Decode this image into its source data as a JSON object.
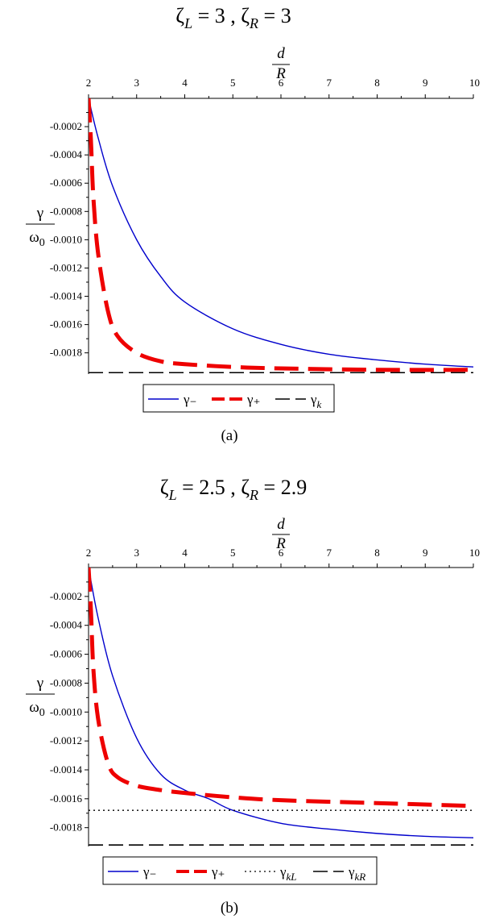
{
  "chart_data": [
    {
      "type": "line",
      "panel_caption": "(a)",
      "title": {
        "zetaL": "3",
        "zetaR": "3"
      },
      "xlabel": {
        "num": "d",
        "den": "R"
      },
      "ylabel": {
        "num": "γ",
        "den": "ω",
        "sub": "0"
      },
      "xlim": [
        2,
        10
      ],
      "ylim": [
        -0.00195,
        0.0
      ],
      "x_ticks": [
        2,
        3,
        4,
        5,
        6,
        7,
        8,
        9,
        10
      ],
      "y_ticks": [
        -0.0002,
        -0.0004,
        -0.0006,
        -0.0008,
        -0.001,
        -0.0012,
        -0.0014,
        -0.0016,
        -0.0018
      ],
      "y_tick_labels": [
        "-0.0002",
        "-0.0004",
        "-0.0006",
        "-0.0008",
        "-0.0010",
        "-0.0012",
        "-0.0014",
        "-0.0016",
        "-0.0018"
      ],
      "series": [
        {
          "name": "γ₋",
          "style": "solid",
          "color": "#0000cc",
          "width": 1.4,
          "x": [
            2.0,
            2.2,
            2.5,
            3.0,
            3.5,
            4.0,
            5.0,
            6.0,
            7.0,
            8.0,
            9.0,
            10.0
          ],
          "y": [
            0.0,
            -0.00028,
            -0.00062,
            -0.001,
            -0.00126,
            -0.00144,
            -0.00163,
            -0.00174,
            -0.00181,
            -0.00185,
            -0.00188,
            -0.0019
          ]
        },
        {
          "name": "γ₊",
          "style": "dash",
          "color": "#ee0000",
          "width": 5,
          "x": [
            2.0,
            2.05,
            2.1,
            2.2,
            2.4,
            2.6,
            3.0,
            3.5,
            4.0,
            5.0,
            6.0,
            8.0,
            10.0
          ],
          "y": [
            0.0,
            -0.0003,
            -0.0007,
            -0.0011,
            -0.0015,
            -0.00168,
            -0.0018,
            -0.00186,
            -0.00188,
            -0.0019,
            -0.00191,
            -0.00192,
            -0.00192
          ]
        },
        {
          "name": "γ",
          "sub": "k",
          "style": "longdash",
          "color": "#000000",
          "width": 1.6,
          "x": [
            2,
            10
          ],
          "y": [
            -0.00194,
            -0.00194
          ]
        }
      ]
    },
    {
      "type": "line",
      "panel_caption": "(b)",
      "title": {
        "zetaL": "2.5",
        "zetaR": "2.9"
      },
      "xlabel": {
        "num": "d",
        "den": "R"
      },
      "ylabel": {
        "num": "γ",
        "den": "ω",
        "sub": "0"
      },
      "xlim": [
        2,
        10
      ],
      "ylim": [
        -0.00193,
        0.0
      ],
      "x_ticks": [
        2,
        3,
        4,
        5,
        6,
        7,
        8,
        9,
        10
      ],
      "y_ticks": [
        -0.0002,
        -0.0004,
        -0.0006,
        -0.0008,
        -0.001,
        -0.0012,
        -0.0014,
        -0.0016,
        -0.0018
      ],
      "y_tick_labels": [
        "-0.0002",
        "-0.0004",
        "-0.0006",
        "-0.0008",
        "-0.0010",
        "-0.0012",
        "-0.0014",
        "-0.0016",
        "-0.0018"
      ],
      "series": [
        {
          "name": "γ₋",
          "style": "solid",
          "color": "#0000cc",
          "width": 1.4,
          "x": [
            2.0,
            2.2,
            2.5,
            3.0,
            3.5,
            4.0,
            4.5,
            5.0,
            6.0,
            7.0,
            8.0,
            9.0,
            10.0
          ],
          "y": [
            0.0,
            -0.00035,
            -0.00075,
            -0.00118,
            -0.00143,
            -0.00154,
            -0.0016,
            -0.00168,
            -0.00177,
            -0.00181,
            -0.00184,
            -0.00186,
            -0.00187
          ]
        },
        {
          "name": "γ₊",
          "style": "dash",
          "color": "#ee0000",
          "width": 5,
          "x": [
            2.0,
            2.05,
            2.1,
            2.2,
            2.4,
            2.6,
            3.0,
            3.5,
            4.0,
            5.0,
            6.0,
            8.0,
            10.0
          ],
          "y": [
            0.0,
            -0.0003,
            -0.0007,
            -0.00105,
            -0.00135,
            -0.00145,
            -0.00151,
            -0.00154,
            -0.00156,
            -0.00159,
            -0.00161,
            -0.00163,
            -0.00165
          ]
        },
        {
          "name": "γ",
          "sub": "kL",
          "style": "dot",
          "color": "#000000",
          "width": 1.3,
          "x": [
            2,
            10
          ],
          "y": [
            -0.00168,
            -0.00168
          ]
        },
        {
          "name": "γ",
          "sub": "kR",
          "style": "longdash",
          "color": "#000000",
          "width": 1.6,
          "x": [
            2,
            10
          ],
          "y": [
            -0.00192,
            -0.00192
          ]
        }
      ]
    }
  ]
}
